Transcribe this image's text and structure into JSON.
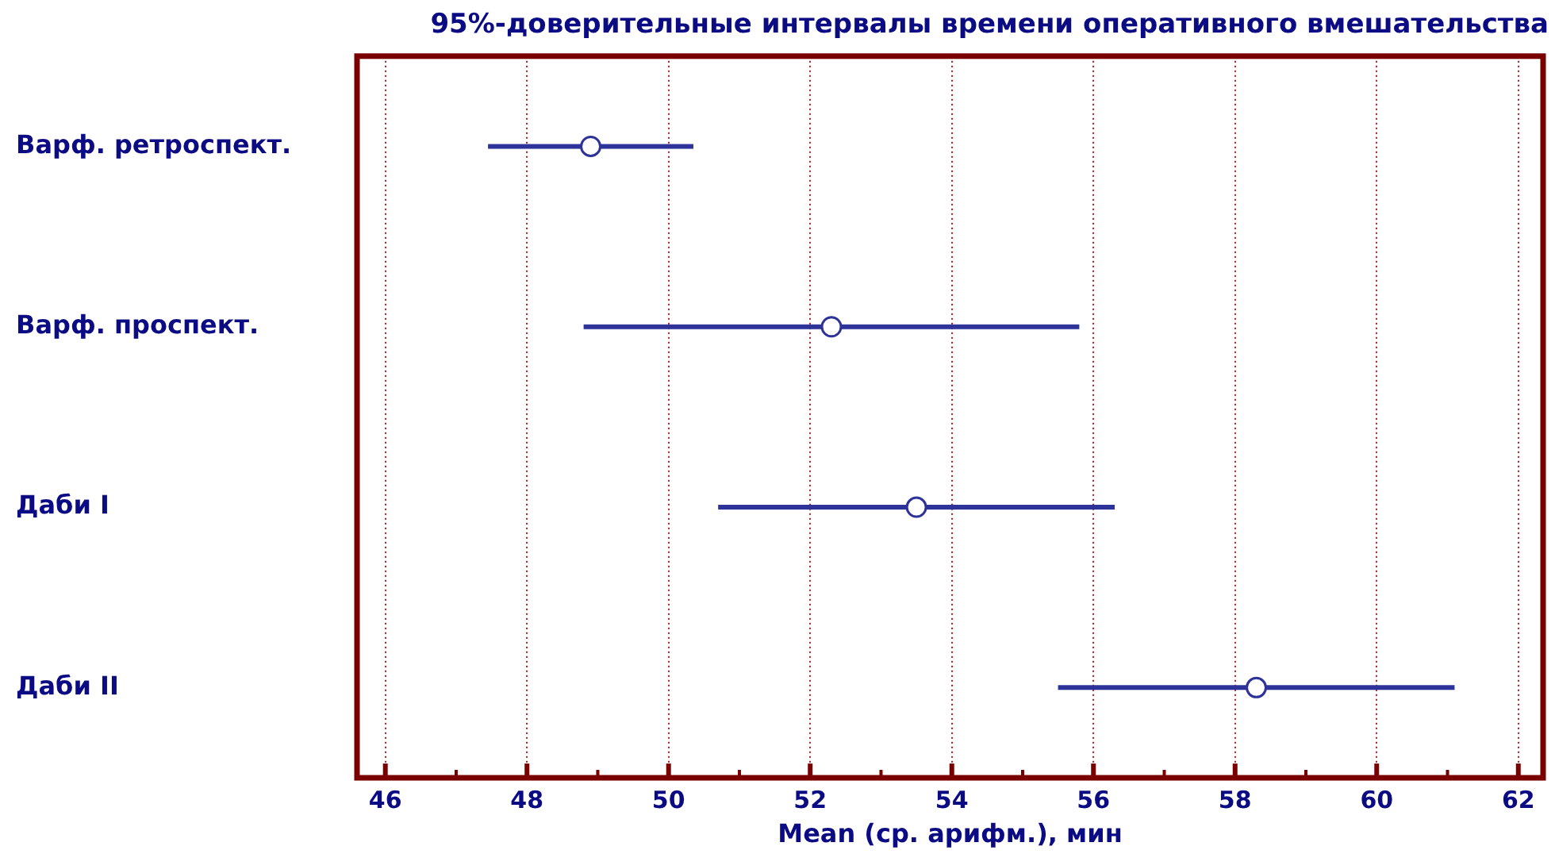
{
  "chart_data": {
    "type": "scatter",
    "orientation": "horizontal",
    "title": "95%-доверительные интервалы времени оперативного вмешательства",
    "xlabel": "Mean (ср. арифм.), мин",
    "categories": [
      "Варф. ретроспект.",
      "Варф. проспект.",
      "Даби I",
      "Даби II"
    ],
    "values": [
      48.9,
      52.3,
      53.5,
      58.3
    ],
    "errors": [
      1.45,
      3.5,
      2.8,
      2.8
    ],
    "color": "#2d3399",
    "xlim": [
      45.6,
      62.35
    ],
    "xticks": [
      46,
      {
        "value": 47,
        "label": null
      },
      48,
      {
        "value": 49,
        "label": null
      },
      50,
      {
        "value": 51,
        "label": null
      },
      52,
      {
        "value": 53,
        "label": null
      },
      54,
      {
        "value": 55,
        "label": null
      },
      56,
      {
        "value": 57,
        "label": null
      },
      58,
      {
        "value": 59,
        "label": null
      },
      60,
      {
        "value": 61,
        "label": null
      },
      62
    ],
    "grid": "x",
    "marker": "circle"
  }
}
